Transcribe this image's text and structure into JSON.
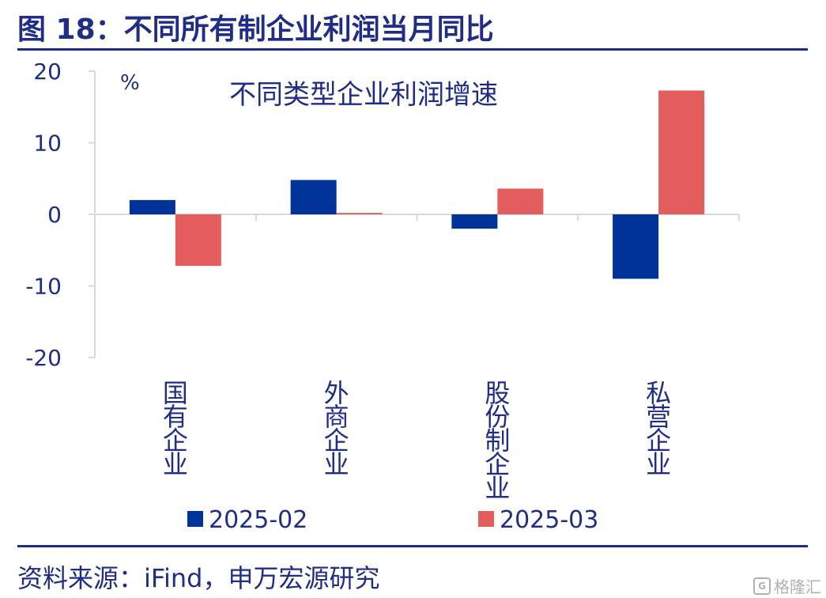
{
  "figure_title": "图 18：不同所有制企业利润当月同比",
  "source": "资料来源：iFind，申万宏源研究",
  "watermark": "格隆汇",
  "colors": {
    "series_1": "#003399",
    "series_2": "#e35d5d",
    "text": "#1f2d86",
    "axis": "#d9d9d9"
  },
  "chart_data": {
    "type": "bar",
    "title": "不同类型企业利润增速",
    "ylabel": "%",
    "ylim": [
      -20,
      20
    ],
    "yticks": [
      20,
      10,
      0,
      -10,
      -20
    ],
    "grid": false,
    "legend": "bottom",
    "categories": [
      "国有企业",
      "外商企业",
      "股份制企业",
      "私营企业"
    ],
    "series": [
      {
        "name": "2025-02",
        "values": [
          2.0,
          4.8,
          -2.0,
          -9.0
        ]
      },
      {
        "name": "2025-03",
        "values": [
          -7.2,
          0.2,
          3.6,
          17.3
        ]
      }
    ]
  }
}
